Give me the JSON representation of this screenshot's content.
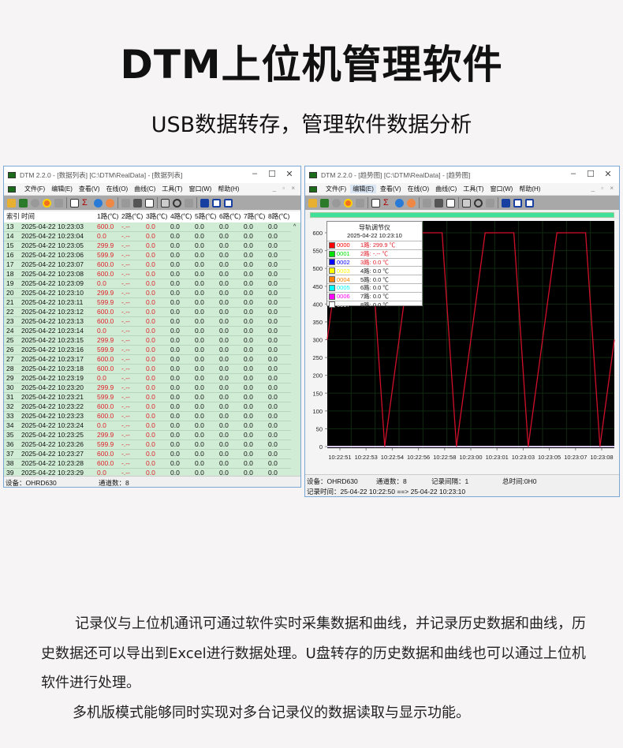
{
  "headline": "DTM上位机管理软件",
  "subtitle": "USB数据转存，管理软件数据分析",
  "paragraphs": [
    "记录仪与上位机通讯可通过软件实时采集数据和曲线，并记录历史数据和曲线，历史数据还可以导出到Excel进行数据处理。U盘转存的历史数据和曲线也可以通过上位机软件进行处理。",
    "多机版模式能够同时实现对多台记录仪的数据读取与显示功能。"
  ],
  "menu": [
    "文件(F)",
    "编辑(E)",
    "查看(V)",
    "在线(O)",
    "曲线(C)",
    "工具(T)",
    "窗口(W)",
    "帮助(H)"
  ],
  "window_list": {
    "title": "DTM 2.2.0 - [数据列表] [C:\\DTM\\RealData] - [数据列表]",
    "columns": [
      "索引",
      "时间",
      "1路(℃)",
      "2路(℃)",
      "3路(℃)",
      "4路(℃)",
      "5路(℃)",
      "6路(℃)",
      "7路(℃)",
      "8路(℃)"
    ],
    "rows": [
      [
        "13",
        "2025-04-22 10:23:03",
        "600.0",
        "-.--",
        "0.0",
        "0.0",
        "0.0",
        "0.0",
        "0.0",
        "0.0"
      ],
      [
        "14",
        "2025-04-22 10:23:04",
        "0.0",
        "-.--",
        "0.0",
        "0.0",
        "0.0",
        "0.0",
        "0.0",
        "0.0"
      ],
      [
        "15",
        "2025-04-22 10:23:05",
        "299.9",
        "-.--",
        "0.0",
        "0.0",
        "0.0",
        "0.0",
        "0.0",
        "0.0"
      ],
      [
        "16",
        "2025-04-22 10:23:06",
        "599.9",
        "-.--",
        "0.0",
        "0.0",
        "0.0",
        "0.0",
        "0.0",
        "0.0"
      ],
      [
        "17",
        "2025-04-22 10:23:07",
        "600.0",
        "-.--",
        "0.0",
        "0.0",
        "0.0",
        "0.0",
        "0.0",
        "0.0"
      ],
      [
        "18",
        "2025-04-22 10:23:08",
        "600.0",
        "-.--",
        "0.0",
        "0.0",
        "0.0",
        "0.0",
        "0.0",
        "0.0"
      ],
      [
        "19",
        "2025-04-22 10:23:09",
        "0.0",
        "-.--",
        "0.0",
        "0.0",
        "0.0",
        "0.0",
        "0.0",
        "0.0"
      ],
      [
        "20",
        "2025-04-22 10:23:10",
        "299.9",
        "-.--",
        "0.0",
        "0.0",
        "0.0",
        "0.0",
        "0.0",
        "0.0"
      ],
      [
        "21",
        "2025-04-22 10:23:11",
        "599.9",
        "-.--",
        "0.0",
        "0.0",
        "0.0",
        "0.0",
        "0.0",
        "0.0"
      ],
      [
        "22",
        "2025-04-22 10:23:12",
        "600.0",
        "-.--",
        "0.0",
        "0.0",
        "0.0",
        "0.0",
        "0.0",
        "0.0"
      ],
      [
        "23",
        "2025-04-22 10:23:13",
        "600.0",
        "-.--",
        "0.0",
        "0.0",
        "0.0",
        "0.0",
        "0.0",
        "0.0"
      ],
      [
        "24",
        "2025-04-22 10:23:14",
        "0.0",
        "-.--",
        "0.0",
        "0.0",
        "0.0",
        "0.0",
        "0.0",
        "0.0"
      ],
      [
        "25",
        "2025-04-22 10:23:15",
        "299.9",
        "-.--",
        "0.0",
        "0.0",
        "0.0",
        "0.0",
        "0.0",
        "0.0"
      ],
      [
        "26",
        "2025-04-22 10:23:16",
        "599.9",
        "-.--",
        "0.0",
        "0.0",
        "0.0",
        "0.0",
        "0.0",
        "0.0"
      ],
      [
        "27",
        "2025-04-22 10:23:17",
        "600.0",
        "-.--",
        "0.0",
        "0.0",
        "0.0",
        "0.0",
        "0.0",
        "0.0"
      ],
      [
        "28",
        "2025-04-22 10:23:18",
        "600.0",
        "-.--",
        "0.0",
        "0.0",
        "0.0",
        "0.0",
        "0.0",
        "0.0"
      ],
      [
        "29",
        "2025-04-22 10:23:19",
        "0.0",
        "-.--",
        "0.0",
        "0.0",
        "0.0",
        "0.0",
        "0.0",
        "0.0"
      ],
      [
        "30",
        "2025-04-22 10:23:20",
        "299.9",
        "-.--",
        "0.0",
        "0.0",
        "0.0",
        "0.0",
        "0.0",
        "0.0"
      ],
      [
        "31",
        "2025-04-22 10:23:21",
        "599.9",
        "-.--",
        "0.0",
        "0.0",
        "0.0",
        "0.0",
        "0.0",
        "0.0"
      ],
      [
        "32",
        "2025-04-22 10:23:22",
        "600.0",
        "-.--",
        "0.0",
        "0.0",
        "0.0",
        "0.0",
        "0.0",
        "0.0"
      ],
      [
        "33",
        "2025-04-22 10:23:23",
        "600.0",
        "-.--",
        "0.0",
        "0.0",
        "0.0",
        "0.0",
        "0.0",
        "0.0"
      ],
      [
        "34",
        "2025-04-22 10:23:24",
        "0.0",
        "-.--",
        "0.0",
        "0.0",
        "0.0",
        "0.0",
        "0.0",
        "0.0"
      ],
      [
        "35",
        "2025-04-22 10:23:25",
        "299.9",
        "-.--",
        "0.0",
        "0.0",
        "0.0",
        "0.0",
        "0.0",
        "0.0"
      ],
      [
        "36",
        "2025-04-22 10:23:26",
        "599.9",
        "-.--",
        "0.0",
        "0.0",
        "0.0",
        "0.0",
        "0.0",
        "0.0"
      ],
      [
        "37",
        "2025-04-22 10:23:27",
        "600.0",
        "-.--",
        "0.0",
        "0.0",
        "0.0",
        "0.0",
        "0.0",
        "0.0"
      ],
      [
        "38",
        "2025-04-22 10:23:28",
        "600.0",
        "-.--",
        "0.0",
        "0.0",
        "0.0",
        "0.0",
        "0.0",
        "0.0"
      ],
      [
        "39",
        "2025-04-22 10:23:29",
        "0.0",
        "-.--",
        "0.0",
        "0.0",
        "0.0",
        "0.0",
        "0.0",
        "0.0"
      ]
    ],
    "status": {
      "device": "设备：OHRD630",
      "channels": "通道数：8"
    }
  },
  "window_trend": {
    "title": "DTM 2.2.0 - [趋势图] [C:\\DTM\\RealData] - [趋势图]",
    "legend": {
      "title": "导轨调节仪",
      "datetime": "2025-04-22 10:23:10",
      "items": [
        {
          "code": "0000",
          "label": "1路: 299.9 ℃",
          "color": "#ff0000",
          "text_color": "#e0202a"
        },
        {
          "code": "0001",
          "label": "2路: -.-- ℃",
          "color": "#00e000",
          "text_color": "#e0202a"
        },
        {
          "code": "0002",
          "label": "3路: 0.0 ℃",
          "color": "#0000ff",
          "text_color": "#e0202a"
        },
        {
          "code": "0003",
          "label": "4路: 0.0 ℃",
          "color": "#ffff00",
          "text_color": "#222"
        },
        {
          "code": "0004",
          "label": "5路: 0.0 ℃",
          "color": "#ff8000",
          "text_color": "#222"
        },
        {
          "code": "0005",
          "label": "6路: 0.0 ℃",
          "color": "#00ffff",
          "text_color": "#222"
        },
        {
          "code": "0006",
          "label": "7路: 0.0 ℃",
          "color": "#ff00ff",
          "text_color": "#222"
        },
        {
          "code": "0007",
          "label": "8路: 0.0 ℃",
          "color": "#ffffff",
          "text_color": "#222"
        }
      ]
    },
    "status": {
      "device": "设备：OHRD630",
      "channels": "通道数：8",
      "record_time": "记录时间：25-04-22 10:22:50 ==> 25-04-22 10:23:10",
      "interval": "记录间隔：1",
      "total": "总时间:0H0"
    }
  },
  "chart_data": {
    "type": "line",
    "ylim": [
      0,
      600
    ],
    "yticks": [
      0,
      50,
      100,
      150,
      200,
      250,
      300,
      350,
      400,
      450,
      500,
      550,
      600
    ],
    "xlim": [
      "10:22:50",
      "10:23:10"
    ],
    "xtick_labels": [
      "10:22:51",
      "10:22:53",
      "10:22:54",
      "10:22:56",
      "10:22:58",
      "10:23:00",
      "10:23:01",
      "10:23:03",
      "10:23:05",
      "10:23:07",
      "10:23:08"
    ],
    "grid": true,
    "background": "#000000",
    "x": [
      "10:22:50",
      "10:22:51",
      "10:22:52",
      "10:22:53",
      "10:22:54",
      "10:22:55",
      "10:22:56",
      "10:22:57",
      "10:22:58",
      "10:22:59",
      "10:23:00",
      "10:23:01",
      "10:23:02",
      "10:23:03",
      "10:23:04",
      "10:23:05",
      "10:23:06",
      "10:23:07",
      "10:23:08",
      "10:23:09",
      "10:23:10"
    ],
    "series": [
      {
        "color": "#d0102a",
        "values": [
          299.9,
          599.9,
          600,
          600,
          0,
          299.9,
          599.9,
          600,
          600,
          0,
          299.9,
          599.9,
          600,
          600,
          0,
          299.9,
          599.9,
          600,
          600,
          0,
          299.9
        ]
      },
      {
        "color": "#d8c8f0",
        "values": [
          0,
          0,
          0,
          0,
          0,
          0,
          0,
          0,
          0,
          0,
          0,
          0,
          0,
          0,
          0,
          0,
          0,
          0,
          0,
          0,
          0
        ]
      }
    ]
  }
}
